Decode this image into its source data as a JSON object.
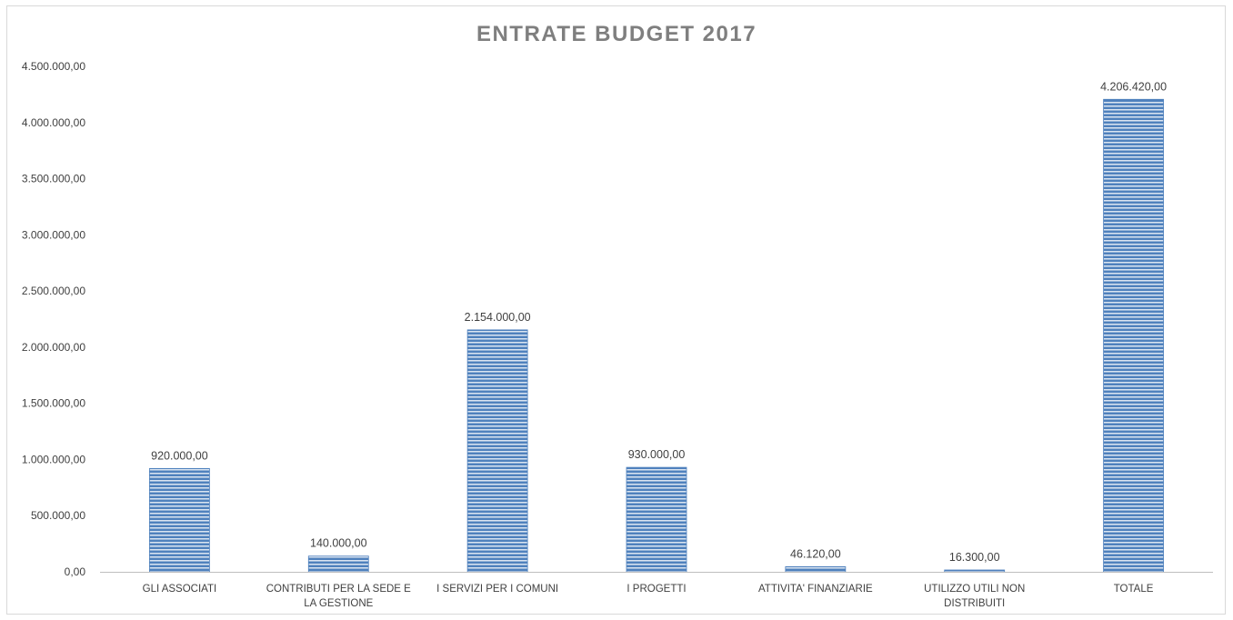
{
  "chart_data": {
    "type": "bar",
    "title": "ENTRATE BUDGET 2017",
    "xlabel": "",
    "ylabel": "",
    "categories": [
      "GLI ASSOCIATI",
      "CONTRIBUTI PER LA SEDE E LA GESTIONE",
      "I SERVIZI PER I COMUNI",
      "I PROGETTI",
      "ATTIVITA' FINANZIARIE",
      "UTILIZZO UTILI NON DISTRIBUITI",
      "TOTALE"
    ],
    "category_lines": [
      [
        "GLI ASSOCIATI"
      ],
      [
        "CONTRIBUTI PER LA SEDE E",
        "LA GESTIONE"
      ],
      [
        "I SERVIZI PER I COMUNI"
      ],
      [
        "I PROGETTI"
      ],
      [
        "ATTIVITA' FINANZIARIE"
      ],
      [
        "UTILIZZO UTILI NON",
        "DISTRIBUITI"
      ],
      [
        "TOTALE"
      ]
    ],
    "values": [
      920000,
      140000,
      2154000,
      930000,
      46120,
      16300,
      4206420
    ],
    "data_labels": [
      "920.000,00",
      "140.000,00",
      "2.154.000,00",
      "930.000,00",
      "46.120,00",
      "16.300,00",
      "4.206.420,00"
    ],
    "ylim": [
      0,
      4500000
    ],
    "yticks": [
      0,
      500000,
      1000000,
      1500000,
      2000000,
      2500000,
      3000000,
      3500000,
      4000000,
      4500000
    ],
    "ytick_labels": [
      "0,00",
      "500.000,00",
      "1.000.000,00",
      "1.500.000,00",
      "2.000.000,00",
      "2.500.000,00",
      "3.000.000,00",
      "3.500.000,00",
      "4.000.000,00",
      "4.500.000,00"
    ],
    "grid": false,
    "legend": "none",
    "colors": {
      "bar": "#4f81bd",
      "bar_stripe": "#dbe5f1",
      "axis": "#bfbfbf",
      "title": "#7f7f7f",
      "text": "#404040"
    }
  }
}
